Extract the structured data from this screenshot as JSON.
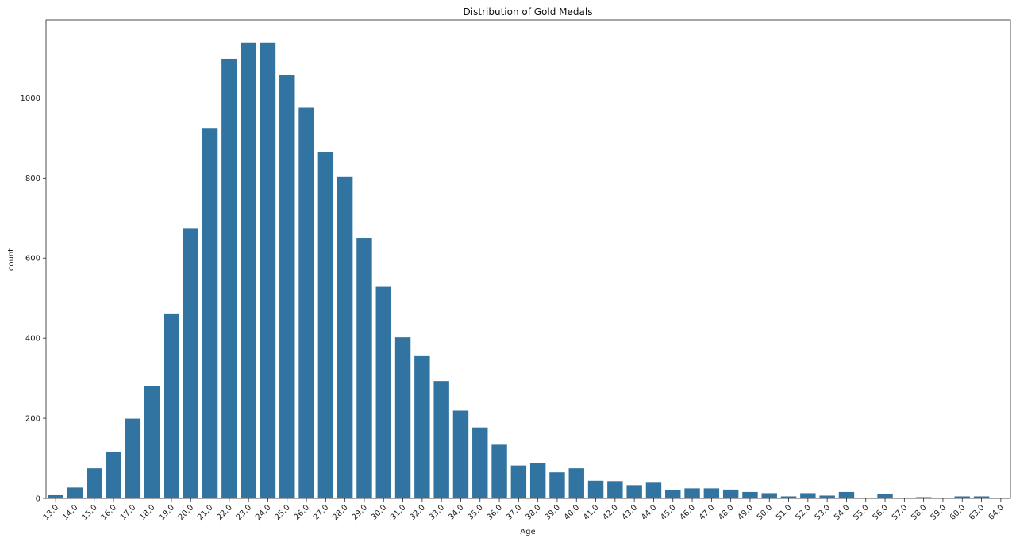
{
  "chart_data": {
    "type": "bar",
    "title": "Distribution of Gold Medals",
    "xlabel": "Age",
    "ylabel": "count",
    "categories": [
      "13.0",
      "14.0",
      "15.0",
      "16.0",
      "17.0",
      "18.0",
      "19.0",
      "20.0",
      "21.0",
      "22.0",
      "23.0",
      "24.0",
      "25.0",
      "26.0",
      "27.0",
      "28.0",
      "29.0",
      "30.0",
      "31.0",
      "32.0",
      "33.0",
      "34.0",
      "35.0",
      "36.0",
      "37.0",
      "38.0",
      "39.0",
      "40.0",
      "41.0",
      "42.0",
      "43.0",
      "44.0",
      "45.0",
      "46.0",
      "47.0",
      "48.0",
      "49.0",
      "50.0",
      "51.0",
      "52.0",
      "53.0",
      "54.0",
      "55.0",
      "56.0",
      "57.0",
      "58.0",
      "59.0",
      "60.0",
      "63.0",
      "64.0"
    ],
    "values": [
      8,
      27,
      75,
      117,
      199,
      281,
      460,
      675,
      925,
      1098,
      1138,
      1138,
      1057,
      976,
      864,
      803,
      650,
      528,
      402,
      357,
      293,
      219,
      177,
      134,
      82,
      89,
      65,
      75,
      44,
      43,
      33,
      39,
      21,
      25,
      25,
      22,
      16,
      13,
      5,
      13,
      7,
      16,
      2,
      10,
      1,
      3,
      1,
      5,
      5,
      1
    ],
    "yticks": [
      0,
      200,
      400,
      600,
      800,
      1000
    ],
    "ylim": [
      0,
      1195
    ],
    "grid": false,
    "legend": "none",
    "colors": {
      "bar": "#3274a1",
      "axis": "#222222"
    }
  }
}
